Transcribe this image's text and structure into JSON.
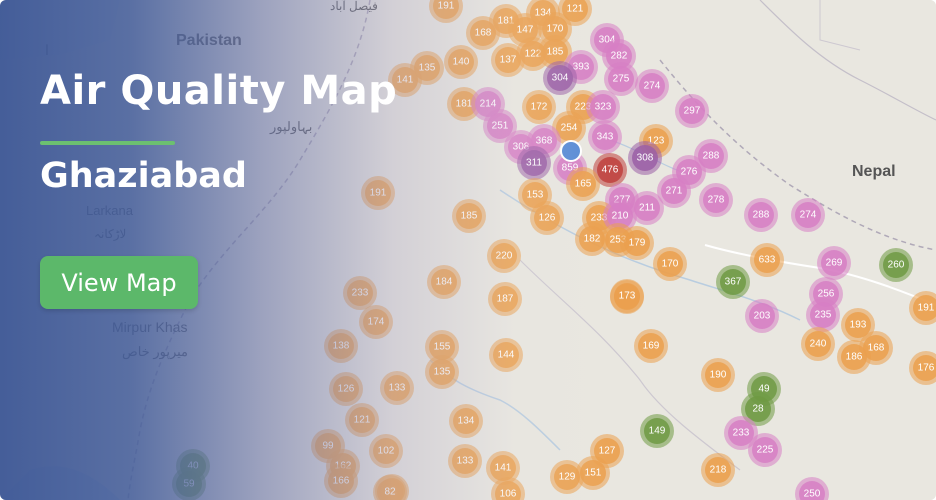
{
  "header": {
    "title": "Air Quality Map",
    "city": "Ghaziabad",
    "button_label": "View Map"
  },
  "colors": {
    "overlay": "#3e5896",
    "accent": "#6cc070",
    "button": "#5cb86a",
    "aqi_orange": "#eba04f",
    "aqi_pink": "#d77fc4",
    "aqi_purple": "#9b5fa6",
    "aqi_red": "#c0403d",
    "aqi_green": "#6f9a43",
    "marker": "#5b8dd6"
  },
  "map": {
    "places": [
      "Pakistan",
      "Nepal",
      "Larkana",
      "لاڑکانہ",
      "Mirpur Khas",
      "میرپور خاص",
      "بہاولپور",
      "فیصل آباد",
      "ا"
    ],
    "clusters": [
      {
        "v": 191,
        "c": "o"
      },
      {
        "v": 181,
        "c": "o"
      },
      {
        "v": 134,
        "c": "o"
      },
      {
        "v": 121,
        "c": "o"
      },
      {
        "v": 168,
        "c": "o"
      },
      {
        "v": 147,
        "c": "o"
      },
      {
        "v": 170,
        "c": "o"
      },
      {
        "v": 304,
        "c": "p"
      },
      {
        "v": 282,
        "c": "p"
      },
      {
        "v": 137,
        "c": "o"
      },
      {
        "v": 122,
        "c": "o"
      },
      {
        "v": 185,
        "c": "o"
      },
      {
        "v": 393,
        "c": "p"
      },
      {
        "v": 140,
        "c": "o"
      },
      {
        "v": 135,
        "c": "o"
      },
      {
        "v": 141,
        "c": "o"
      },
      {
        "v": 304,
        "c": "u"
      },
      {
        "v": 275,
        "c": "p"
      },
      {
        "v": 274,
        "c": "p"
      },
      {
        "v": 181,
        "c": "o"
      },
      {
        "v": 214,
        "c": "p"
      },
      {
        "v": 172,
        "c": "o"
      },
      {
        "v": 223,
        "c": "o"
      },
      {
        "v": 323,
        "c": "p"
      },
      {
        "v": 297,
        "c": "p"
      },
      {
        "v": 251,
        "c": "p"
      },
      {
        "v": 254,
        "c": "o"
      },
      {
        "v": 343,
        "c": "p"
      },
      {
        "v": 123,
        "c": "o"
      },
      {
        "v": 308,
        "c": "p"
      },
      {
        "v": 368,
        "c": "p"
      },
      {
        "v": 288,
        "c": "p"
      },
      {
        "v": 311,
        "c": "u"
      },
      {
        "v": 859,
        "c": "p"
      },
      {
        "v": 476,
        "c": "r"
      },
      {
        "v": 308,
        "c": "u"
      },
      {
        "v": 276,
        "c": "p"
      },
      {
        "v": 165,
        "c": "o"
      },
      {
        "v": 271,
        "c": "p"
      },
      {
        "v": 153,
        "c": "o"
      },
      {
        "v": 277,
        "c": "p"
      },
      {
        "v": 278,
        "c": "p"
      },
      {
        "v": 191,
        "c": "o"
      },
      {
        "v": 185,
        "c": "o"
      },
      {
        "v": 126,
        "c": "o"
      },
      {
        "v": 233,
        "c": "o"
      },
      {
        "v": 210,
        "c": "p"
      },
      {
        "v": 211,
        "c": "p"
      },
      {
        "v": 288,
        "c": "p"
      },
      {
        "v": 274,
        "c": "p"
      },
      {
        "v": 182,
        "c": "o"
      },
      {
        "v": 253,
        "c": "o"
      },
      {
        "v": 179,
        "c": "o"
      },
      {
        "v": 173,
        "c": "o"
      },
      {
        "v": 220,
        "c": "o"
      },
      {
        "v": 170,
        "c": "o"
      },
      {
        "v": 633,
        "c": "o"
      },
      {
        "v": 269,
        "c": "p"
      },
      {
        "v": 260,
        "c": "g"
      },
      {
        "v": 184,
        "c": "o"
      },
      {
        "v": 367,
        "c": "g"
      },
      {
        "v": 256,
        "c": "p"
      },
      {
        "v": 233,
        "c": "o"
      },
      {
        "v": 187,
        "c": "o"
      },
      {
        "v": 173,
        "c": "o"
      },
      {
        "v": 174,
        "c": "o"
      },
      {
        "v": 203,
        "c": "p"
      },
      {
        "v": 235,
        "c": "p"
      },
      {
        "v": 193,
        "c": "o"
      },
      {
        "v": 191,
        "c": "o"
      },
      {
        "v": 138,
        "c": "o"
      },
      {
        "v": 155,
        "c": "o"
      },
      {
        "v": 169,
        "c": "o"
      },
      {
        "v": 240,
        "c": "o"
      },
      {
        "v": 168,
        "c": "o"
      },
      {
        "v": 144,
        "c": "o"
      },
      {
        "v": 186,
        "c": "o"
      },
      {
        "v": 126,
        "c": "o"
      },
      {
        "v": 133,
        "c": "o"
      },
      {
        "v": 135,
        "c": "o"
      },
      {
        "v": 190,
        "c": "o"
      },
      {
        "v": 176,
        "c": "o"
      },
      {
        "v": 49,
        "c": "g"
      },
      {
        "v": 121,
        "c": "o"
      },
      {
        "v": 28,
        "c": "g"
      },
      {
        "v": 134,
        "c": "o"
      },
      {
        "v": 149,
        "c": "g"
      },
      {
        "v": 233,
        "c": "p"
      },
      {
        "v": 99,
        "c": "o"
      },
      {
        "v": 102,
        "c": "o"
      },
      {
        "v": 127,
        "c": "o"
      },
      {
        "v": 225,
        "c": "p"
      },
      {
        "v": 162,
        "c": "o"
      },
      {
        "v": 133,
        "c": "o"
      },
      {
        "v": 141,
        "c": "o"
      },
      {
        "v": 151,
        "c": "o"
      },
      {
        "v": 81,
        "c": "o"
      },
      {
        "v": 40,
        "c": "g"
      },
      {
        "v": 129,
        "c": "o"
      },
      {
        "v": 218,
        "c": "o"
      },
      {
        "v": 166,
        "c": "o"
      },
      {
        "v": 59,
        "c": "g"
      },
      {
        "v": 82,
        "c": "o"
      },
      {
        "v": 106,
        "c": "o"
      },
      {
        "v": 250,
        "c": "p"
      }
    ]
  }
}
